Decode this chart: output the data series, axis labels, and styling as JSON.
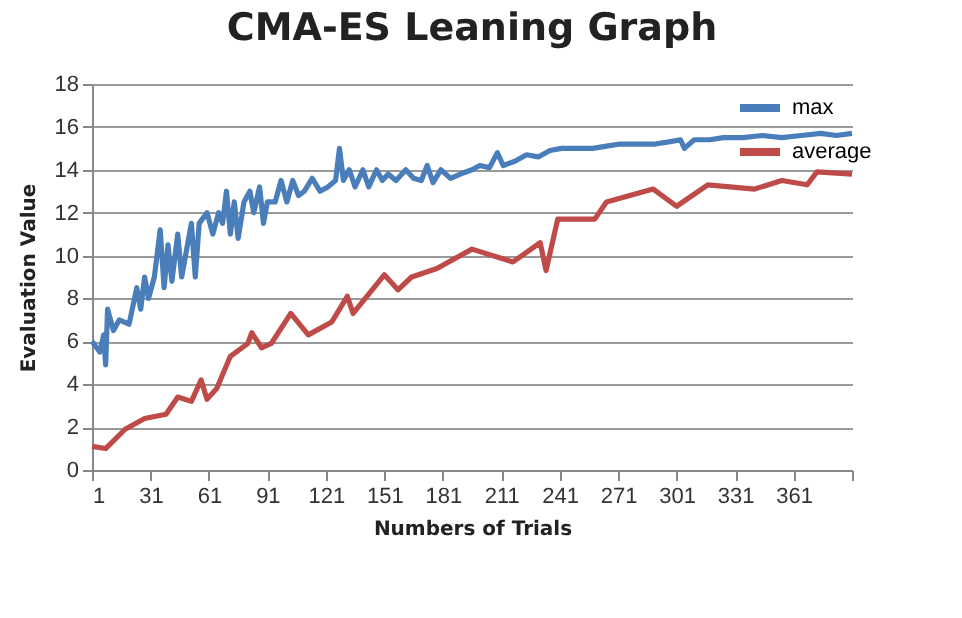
{
  "chart_data": {
    "type": "line",
    "title": "CMA-ES Leaning Graph",
    "xlabel": "Numbers of Trials",
    "ylabel": "Evaluation Value",
    "xlim": [
      1,
      391
    ],
    "xticks": [
      1,
      31,
      61,
      91,
      121,
      151,
      181,
      211,
      241,
      271,
      301,
      331,
      361,
      {
        "value": 391,
        "label": null
      }
    ],
    "ylim": [
      0,
      18
    ],
    "yticks": [
      0,
      2,
      4,
      6,
      8,
      10,
      12,
      14,
      16,
      18
    ],
    "grid": "y",
    "legend": "right",
    "line_style": "solid",
    "marker": "none",
    "series": [
      {
        "name": "max",
        "color": "#4a7ebb",
        "x": [
          1,
          5,
          7,
          8,
          9,
          12,
          15,
          20,
          24,
          26,
          28,
          30,
          33,
          36,
          38,
          40,
          42,
          45,
          47,
          50,
          52,
          54,
          56,
          60,
          63,
          66,
          68,
          70,
          72,
          74,
          76,
          79,
          82,
          84,
          87,
          89,
          91,
          95,
          98,
          101,
          104,
          107,
          110,
          114,
          118,
          122,
          126,
          128,
          130,
          133,
          136,
          140,
          143,
          147,
          150,
          153,
          157,
          162,
          166,
          170,
          173,
          176,
          180,
          185,
          190,
          196,
          200,
          205,
          209,
          212,
          218,
          224,
          230,
          236,
          242,
          250,
          258,
          265,
          272,
          280,
          290,
          297,
          303,
          305,
          310,
          318,
          325,
          335,
          345,
          355,
          365,
          375,
          383,
          391
        ],
        "values": [
          6,
          5.5,
          6.3,
          4.9,
          7.5,
          6.5,
          7,
          6.8,
          8.5,
          7.5,
          9,
          8,
          9,
          11.2,
          8.5,
          10.5,
          8.8,
          11,
          9,
          10.5,
          11.5,
          9,
          11.5,
          12,
          11,
          12,
          11.5,
          13,
          11,
          12.5,
          10.8,
          12.5,
          13,
          12,
          13.2,
          11.5,
          12.5,
          12.5,
          13.5,
          12.5,
          13.5,
          12.8,
          13,
          13.6,
          13,
          13.2,
          13.5,
          15,
          13.5,
          14,
          13.2,
          14,
          13.2,
          14,
          13.5,
          13.8,
          13.5,
          14,
          13.6,
          13.5,
          14.2,
          13.4,
          14,
          13.6,
          13.8,
          14,
          14.2,
          14.1,
          14.8,
          14.2,
          14.4,
          14.7,
          14.6,
          14.9,
          15,
          15,
          15,
          15.1,
          15.2,
          15.2,
          15.2,
          15.3,
          15.4,
          15,
          15.4,
          15.4,
          15.5,
          15.5,
          15.6,
          15.5,
          15.6,
          15.7,
          15.6,
          15.7
        ]
      },
      {
        "name": "average",
        "color": "#be4b48",
        "x": [
          1,
          8,
          18,
          28,
          39,
          45,
          52,
          57,
          60,
          65,
          72,
          81,
          83,
          88,
          93,
          103,
          112,
          124,
          132,
          135,
          151,
          158,
          165,
          178,
          196,
          217,
          231,
          234,
          240,
          259,
          265,
          289,
          301,
          317,
          341,
          355,
          368,
          373,
          391
        ],
        "values": [
          1.1,
          1,
          1.9,
          2.4,
          2.6,
          3.4,
          3.2,
          4.2,
          3.3,
          3.8,
          5.3,
          5.9,
          6.4,
          5.7,
          5.9,
          7.3,
          6.3,
          6.9,
          8.1,
          7.3,
          9.1,
          8.4,
          9,
          9.4,
          10.3,
          9.7,
          10.6,
          9.3,
          11.7,
          11.7,
          12.5,
          13.1,
          12.3,
          13.3,
          13.1,
          13.5,
          13.3,
          13.9,
          13.8
        ]
      }
    ]
  }
}
